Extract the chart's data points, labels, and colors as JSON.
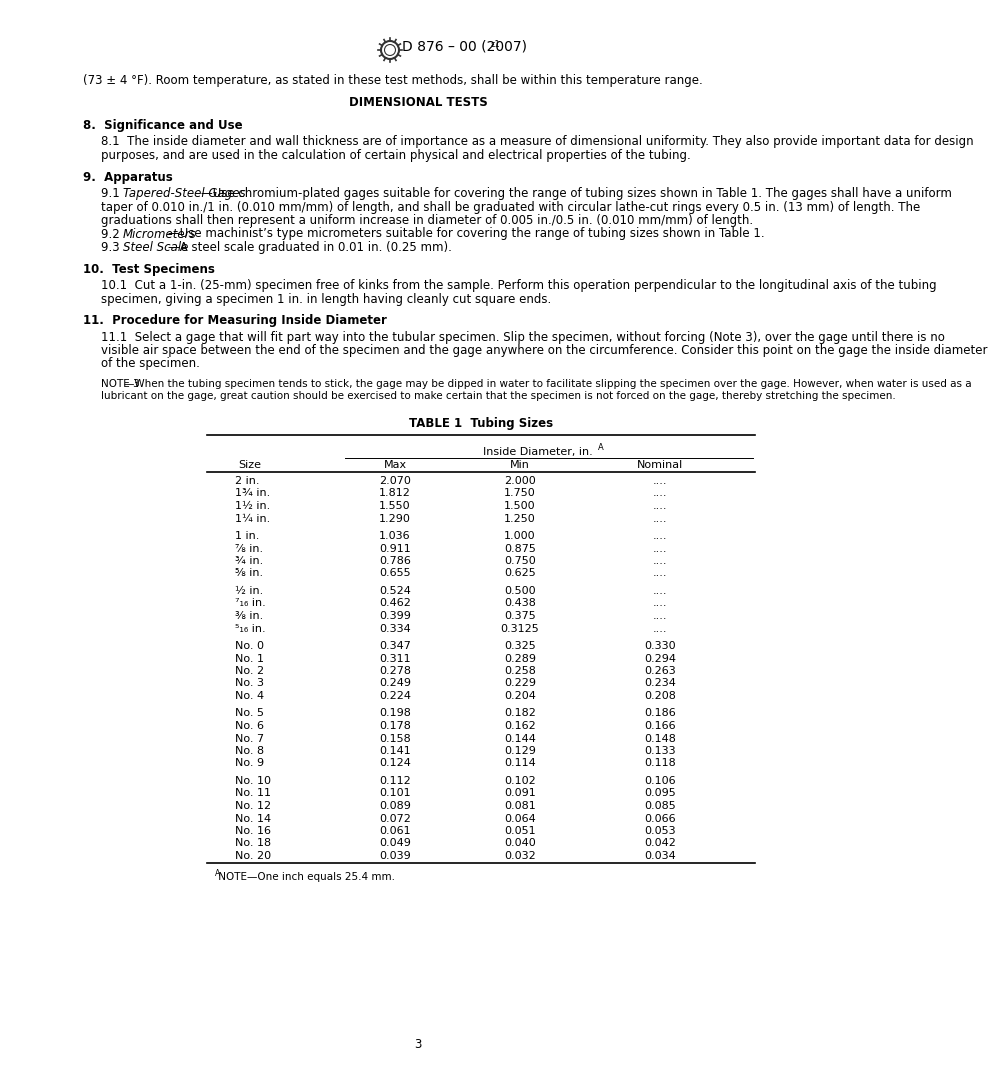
{
  "page_number": "3",
  "intro_text": "(73 ± 4 °F). Room temperature, as stated in these test methods, shall be within this temperature range.",
  "section_title_dim": "DIMENSIONAL TESTS",
  "sec8_title": "8.  Significance and Use",
  "sec8_1": "8.1  The inside diameter and wall thickness are of importance as a measure of dimensional uniformity. They also provide important data for design purposes, and are used in the calculation of certain physical and electrical properties of the tubing.",
  "sec9_title": "9.  Apparatus",
  "sec9_1_prefix": "9.1  ",
  "sec9_1_italic": "Tapered-Steel Gages",
  "sec9_1_rest": "—Use chromium-plated gages suitable for covering the range of tubing sizes shown in Table 1. The gages shall have a uniform taper of 0.010 in./1 in. (0.010 mm/mm) of length, and shall be graduated with circular lathe-cut rings every 0.5 in. (13 mm) of length. The graduations shall then represent a uniform increase in diameter of 0.005 in./0.5 in. (0.010 mm/mm) of length.",
  "sec9_2_prefix": "9.2  ",
  "sec9_2_italic": "Micrometers",
  "sec9_2_rest": "—Use machinist’s type micrometers suitable for covering the range of tubing sizes shown in Table 1.",
  "sec9_3_prefix": "9.3  ",
  "sec9_3_italic": "Steel Scale",
  "sec9_3_rest": "—A steel scale graduated in 0.01 in. (0.25 mm).",
  "sec10_title": "10.  Test Specimens",
  "sec10_1": "10.1  Cut a 1-in. (25-mm) specimen free of kinks from the sample. Perform this operation perpendicular to the longitudinal axis of the tubing specimen, giving a specimen 1 in. in length having cleanly cut square ends.",
  "sec11_title": "11.  Procedure for Measuring Inside Diameter",
  "sec11_1": "11.1  Select a gage that will fit part way into the tubular specimen. Slip the specimen, without forcing (Note 3), over the gage until there is no visible air space between the end of the specimen and the gage anywhere on the circumference. Consider this point on the gage the inside diameter of the specimen.",
  "note3_label": "NOTE 3",
  "note3_rest": "—When the tubing specimen tends to stick, the gage may be dipped in water to facilitate slipping the specimen over the gage. However, when water is used as a lubricant on the gage, great caution should be exercised to make certain that the specimen is not forced on the gage, thereby stretching the specimen.",
  "table_title": "TABLE 1  Tubing Sizes",
  "table_col_span": "Inside Diameter, in.",
  "table_size_label": "Size",
  "table_max": "Max",
  "table_min": "Min",
  "table_nominal": "Nominal",
  "table_rows": [
    [
      "2 in.",
      "2.070",
      "2.000",
      "...."
    ],
    [
      "1¾ in.",
      "1.812",
      "1.750",
      "...."
    ],
    [
      "1½ in.",
      "1.550",
      "1.500",
      "...."
    ],
    [
      "1¼ in.",
      "1.290",
      "1.250",
      "...."
    ],
    [
      "",
      "",
      "",
      ""
    ],
    [
      "1 in.",
      "1.036",
      "1.000",
      "...."
    ],
    [
      "⅞ in.",
      "0.911",
      "0.875",
      "...."
    ],
    [
      "¾ in.",
      "0.786",
      "0.750",
      "...."
    ],
    [
      "⅝ in.",
      "0.655",
      "0.625",
      "...."
    ],
    [
      "",
      "",
      "",
      ""
    ],
    [
      "½ in.",
      "0.524",
      "0.500",
      "...."
    ],
    [
      "⁷₁₆ in.",
      "0.462",
      "0.438",
      "...."
    ],
    [
      "⅜ in.",
      "0.399",
      "0.375",
      "...."
    ],
    [
      "⁵₁₆ in.",
      "0.334",
      "0.3125",
      "...."
    ],
    [
      "",
      "",
      "",
      ""
    ],
    [
      "No. 0",
      "0.347",
      "0.325",
      "0.330"
    ],
    [
      "No. 1",
      "0.311",
      "0.289",
      "0.294"
    ],
    [
      "No. 2",
      "0.278",
      "0.258",
      "0.263"
    ],
    [
      "No. 3",
      "0.249",
      "0.229",
      "0.234"
    ],
    [
      "No. 4",
      "0.224",
      "0.204",
      "0.208"
    ],
    [
      "",
      "",
      "",
      ""
    ],
    [
      "No. 5",
      "0.198",
      "0.182",
      "0.186"
    ],
    [
      "No. 6",
      "0.178",
      "0.162",
      "0.166"
    ],
    [
      "No. 7",
      "0.158",
      "0.144",
      "0.148"
    ],
    [
      "No. 8",
      "0.141",
      "0.129",
      "0.133"
    ],
    [
      "No. 9",
      "0.124",
      "0.114",
      "0.118"
    ],
    [
      "",
      "",
      "",
      ""
    ],
    [
      "No. 10",
      "0.112",
      "0.102",
      "0.106"
    ],
    [
      "No. 11",
      "0.101",
      "0.091",
      "0.095"
    ],
    [
      "No. 12",
      "0.089",
      "0.081",
      "0.085"
    ],
    [
      "No. 14",
      "0.072",
      "0.064",
      "0.066"
    ],
    [
      "No. 16",
      "0.061",
      "0.051",
      "0.053"
    ],
    [
      "No. 18",
      "0.049",
      "0.040",
      "0.042"
    ],
    [
      "No. 20",
      "0.039",
      "0.032",
      "0.034"
    ]
  ],
  "table_footnote_super": "A",
  "table_footnote_text": " NOTE—One inch equals 25.4 mm.",
  "bg_color": "#ffffff",
  "text_color": "#000000"
}
